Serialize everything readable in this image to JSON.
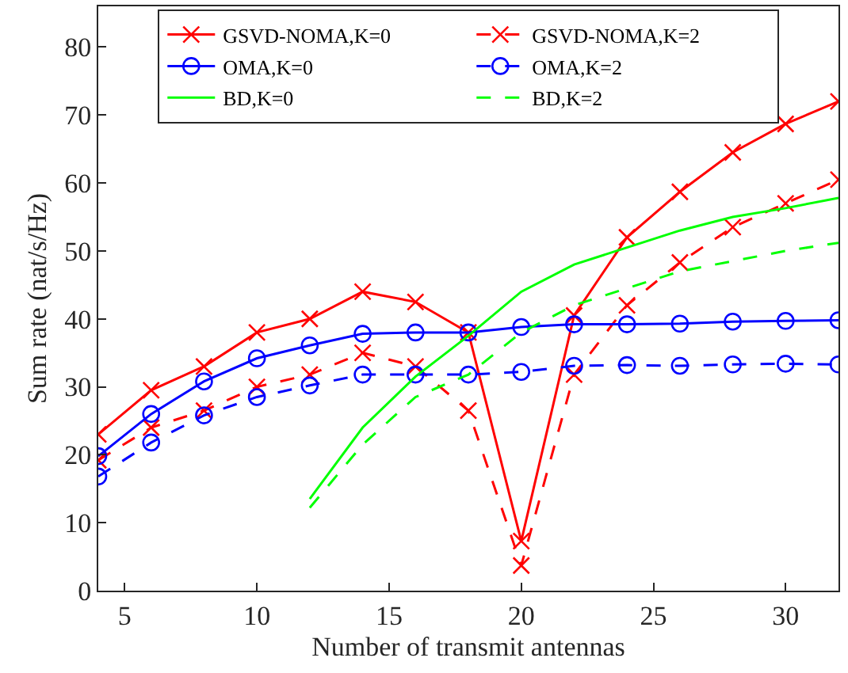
{
  "chart_data": {
    "type": "line",
    "xlabel": "Number of transmit antennas",
    "ylabel": "Sum rate (nat/s/Hz)",
    "x": [
      4,
      6,
      8,
      10,
      12,
      14,
      16,
      18,
      20,
      22,
      24,
      26,
      28,
      30,
      32
    ],
    "xlim": [
      4,
      32
    ],
    "xticks": [
      5,
      10,
      15,
      20,
      25,
      30
    ],
    "ylim": [
      0,
      86
    ],
    "yticks": [
      0,
      10,
      20,
      30,
      40,
      50,
      60,
      70,
      80
    ],
    "legend": "top right",
    "series": [
      {
        "name": "GSVD-NOMA,K=0",
        "color": "#ff0000",
        "marker": "cross",
        "line_style": "solid",
        "values": [
          23,
          29.5,
          33,
          38,
          40,
          44,
          42.5,
          38,
          7.3,
          40.5,
          52,
          58.7,
          64.5,
          68.7,
          72
        ]
      },
      {
        "name": "GSVD-NOMA,K=2",
        "color": "#ff0000",
        "marker": "cross",
        "line_style": "dashed",
        "values": [
          19.2,
          24,
          26.5,
          30,
          31.8,
          35,
          33,
          26.5,
          3.7,
          31.8,
          42,
          48.3,
          53.5,
          57,
          60.5
        ]
      },
      {
        "name": "OMA,K=0",
        "color": "#0000ff",
        "marker": "circle",
        "line_style": "solid",
        "values": [
          19.8,
          26,
          30.8,
          34.2,
          36.1,
          37.8,
          38,
          38,
          38.8,
          39.2,
          39.2,
          39.3,
          39.6,
          39.7,
          39.8
        ]
      },
      {
        "name": "OMA,K=2",
        "color": "#0000ff",
        "marker": "circle",
        "line_style": "dashed",
        "values": [
          16.8,
          21.8,
          25.8,
          28.5,
          30.2,
          31.8,
          31.8,
          31.8,
          32.2,
          33.1,
          33.2,
          33.1,
          33.3,
          33.4,
          33.3
        ]
      },
      {
        "name": "BD,K=0",
        "color": "#00ff00",
        "marker": "none",
        "line_style": "solid",
        "x": [
          12,
          14,
          16,
          18,
          20,
          22,
          24,
          26,
          28,
          30,
          32
        ],
        "values": [
          13.5,
          24,
          31.5,
          37.5,
          44,
          48,
          50.5,
          53,
          55,
          56.3,
          57.8
        ]
      },
      {
        "name": "BD,K=2",
        "color": "#00ff00",
        "marker": "none",
        "line_style": "dashed",
        "x": [
          12,
          14,
          16,
          18,
          20,
          22,
          24,
          26,
          28,
          30,
          32
        ],
        "values": [
          12.2,
          21.5,
          28.5,
          31.8,
          38,
          42,
          44.5,
          47,
          48.5,
          50,
          51.2
        ]
      }
    ]
  }
}
